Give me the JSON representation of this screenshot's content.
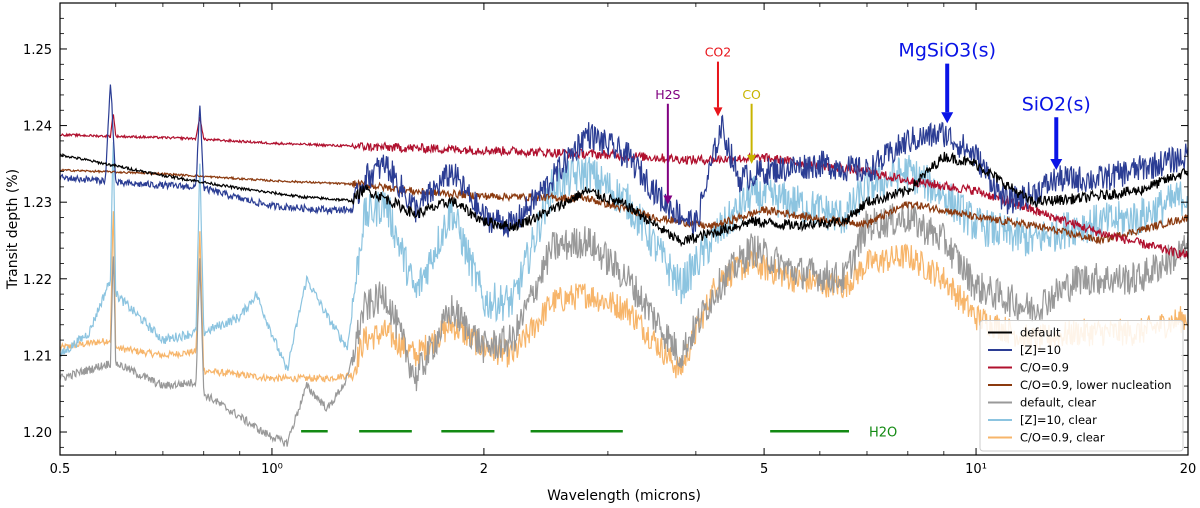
{
  "chart_data": {
    "type": "line",
    "title": "",
    "xlabel": "Wavelength (microns)",
    "ylabel": "Transit depth (%)",
    "xscale": "log",
    "xlim": [
      0.5,
      20
    ],
    "ylim": [
      1.197,
      1.256
    ],
    "xticks": [
      {
        "value": 0.5,
        "label": "0.5"
      },
      {
        "value": 1,
        "label": "10⁰"
      },
      {
        "value": 2,
        "label": "2"
      },
      {
        "value": 5,
        "label": "5"
      },
      {
        "value": 10,
        "label": "10¹"
      },
      {
        "value": 20,
        "label": "20"
      }
    ],
    "yticks": [
      {
        "value": 1.2,
        "label": "1.20"
      },
      {
        "value": 1.21,
        "label": "1.21"
      },
      {
        "value": 1.22,
        "label": "1.22"
      },
      {
        "value": 1.23,
        "label": "1.23"
      },
      {
        "value": 1.24,
        "label": "1.24"
      },
      {
        "value": 1.25,
        "label": "1.25"
      }
    ],
    "grid": false,
    "legend_position": "lower-right",
    "series": [
      {
        "name": "default",
        "color": "#000000",
        "noise": 0.0007,
        "points": [
          [
            0.5,
            1.2362
          ],
          [
            0.7,
            1.2335
          ],
          [
            0.9,
            1.2318
          ],
          [
            1.1,
            1.2307
          ],
          [
            1.3,
            1.2302
          ],
          [
            1.35,
            1.2317
          ],
          [
            1.45,
            1.2305
          ],
          [
            1.6,
            1.2284
          ],
          [
            1.8,
            1.2302
          ],
          [
            2.0,
            1.2275
          ],
          [
            2.2,
            1.2268
          ],
          [
            2.5,
            1.229
          ],
          [
            2.8,
            1.2315
          ],
          [
            3.2,
            1.2295
          ],
          [
            3.8,
            1.2248
          ],
          [
            4.3,
            1.2262
          ],
          [
            4.8,
            1.2275
          ],
          [
            5.5,
            1.227
          ],
          [
            6.5,
            1.2275
          ],
          [
            7.0,
            1.23
          ],
          [
            8.0,
            1.2315
          ],
          [
            9.0,
            1.236
          ],
          [
            10,
            1.235
          ],
          [
            12,
            1.23
          ],
          [
            14,
            1.2305
          ],
          [
            17,
            1.2315
          ],
          [
            20,
            1.234
          ]
        ]
      },
      {
        "name": "[Z]=10",
        "color": "#2b3d94",
        "noise": 0.0018,
        "points": [
          [
            0.5,
            1.2332
          ],
          [
            0.58,
            1.2328
          ],
          [
            0.59,
            1.246
          ],
          [
            0.6,
            1.2325
          ],
          [
            0.78,
            1.232
          ],
          [
            0.79,
            1.243
          ],
          [
            0.8,
            1.2318
          ],
          [
            0.9,
            1.2305
          ],
          [
            1.0,
            1.2295
          ],
          [
            1.2,
            1.229
          ],
          [
            1.3,
            1.229
          ],
          [
            1.35,
            1.233
          ],
          [
            1.45,
            1.235
          ],
          [
            1.6,
            1.229
          ],
          [
            1.8,
            1.234
          ],
          [
            2.0,
            1.228
          ],
          [
            2.2,
            1.227
          ],
          [
            2.5,
            1.233
          ],
          [
            2.8,
            1.239
          ],
          [
            3.2,
            1.236
          ],
          [
            3.6,
            1.23
          ],
          [
            4.0,
            1.227
          ],
          [
            4.35,
            1.24
          ],
          [
            4.6,
            1.233
          ],
          [
            5.0,
            1.234
          ],
          [
            6.0,
            1.235
          ],
          [
            7.0,
            1.234
          ],
          [
            8.0,
            1.238
          ],
          [
            9.0,
            1.239
          ],
          [
            10,
            1.236
          ],
          [
            11,
            1.23
          ],
          [
            12,
            1.231
          ],
          [
            13,
            1.233
          ],
          [
            15,
            1.233
          ],
          [
            20,
            1.236
          ]
        ]
      },
      {
        "name": "C/O=0.9",
        "color": "#b0102e",
        "noise": 0.0006,
        "points": [
          [
            0.5,
            1.2388
          ],
          [
            0.59,
            1.2386
          ],
          [
            0.595,
            1.2418
          ],
          [
            0.6,
            1.2386
          ],
          [
            0.78,
            1.2383
          ],
          [
            0.79,
            1.2412
          ],
          [
            0.8,
            1.2382
          ],
          [
            1.0,
            1.2377
          ],
          [
            1.4,
            1.2372
          ],
          [
            2.0,
            1.2368
          ],
          [
            3.0,
            1.2362
          ],
          [
            4.0,
            1.2355
          ],
          [
            5.0,
            1.2358
          ],
          [
            6.0,
            1.2348
          ],
          [
            7.0,
            1.234
          ],
          [
            8.0,
            1.2328
          ],
          [
            10,
            1.2315
          ],
          [
            12,
            1.229
          ],
          [
            15,
            1.226
          ],
          [
            20,
            1.223
          ]
        ]
      },
      {
        "name": "C/O=0.9, lower nucleation",
        "color": "#8b3a0f",
        "noise": 0.0005,
        "points": [
          [
            0.5,
            1.2342
          ],
          [
            0.7,
            1.2337
          ],
          [
            1.0,
            1.2328
          ],
          [
            1.35,
            1.2323
          ],
          [
            1.6,
            1.2314
          ],
          [
            2.0,
            1.2308
          ],
          [
            2.8,
            1.2305
          ],
          [
            3.5,
            1.228
          ],
          [
            4.2,
            1.2268
          ],
          [
            5.0,
            1.229
          ],
          [
            6.0,
            1.2278
          ],
          [
            7.0,
            1.2272
          ],
          [
            8.0,
            1.2298
          ],
          [
            9.0,
            1.229
          ],
          [
            10,
            1.228
          ],
          [
            12,
            1.227
          ],
          [
            15,
            1.225
          ],
          [
            20,
            1.228
          ]
        ]
      },
      {
        "name": "default, clear",
        "color": "#999999",
        "noise": 0.0022,
        "points": [
          [
            0.5,
            1.207
          ],
          [
            0.59,
            1.209
          ],
          [
            0.595,
            1.2245
          ],
          [
            0.6,
            1.209
          ],
          [
            0.7,
            1.206
          ],
          [
            0.78,
            1.2065
          ],
          [
            0.79,
            1.223
          ],
          [
            0.8,
            1.205
          ],
          [
            0.9,
            1.202
          ],
          [
            0.97,
            1.2
          ],
          [
            1.05,
            1.1985
          ],
          [
            1.12,
            1.206
          ],
          [
            1.2,
            1.203
          ],
          [
            1.28,
            1.207
          ],
          [
            1.35,
            1.216
          ],
          [
            1.45,
            1.218
          ],
          [
            1.6,
            1.207
          ],
          [
            1.8,
            1.216
          ],
          [
            2.0,
            1.211
          ],
          [
            2.2,
            1.212
          ],
          [
            2.5,
            1.224
          ],
          [
            2.8,
            1.225
          ],
          [
            3.2,
            1.22
          ],
          [
            3.8,
            1.21
          ],
          [
            4.3,
            1.219
          ],
          [
            4.8,
            1.224
          ],
          [
            5.5,
            1.221
          ],
          [
            6.5,
            1.22
          ],
          [
            7.0,
            1.227
          ],
          [
            8.0,
            1.228
          ],
          [
            9.0,
            1.225
          ],
          [
            10,
            1.219
          ],
          [
            12,
            1.216
          ],
          [
            14,
            1.22
          ],
          [
            17,
            1.22
          ],
          [
            20,
            1.224
          ]
        ]
      },
      {
        "name": "[Z]=10, clear",
        "color": "#8cc4e0",
        "noise": 0.0025,
        "points": [
          [
            0.5,
            1.21
          ],
          [
            0.55,
            1.213
          ],
          [
            0.59,
            1.22
          ],
          [
            0.595,
            1.24
          ],
          [
            0.6,
            1.218
          ],
          [
            0.7,
            1.212
          ],
          [
            0.78,
            1.213
          ],
          [
            0.79,
            1.235
          ],
          [
            0.8,
            1.213
          ],
          [
            0.9,
            1.215
          ],
          [
            0.95,
            1.218
          ],
          [
            1.05,
            1.208
          ],
          [
            1.12,
            1.22
          ],
          [
            1.2,
            1.215
          ],
          [
            1.28,
            1.211
          ],
          [
            1.35,
            1.228
          ],
          [
            1.45,
            1.23
          ],
          [
            1.6,
            1.218
          ],
          [
            1.8,
            1.229
          ],
          [
            2.0,
            1.217
          ],
          [
            2.2,
            1.217
          ],
          [
            2.5,
            1.232
          ],
          [
            2.8,
            1.234
          ],
          [
            3.2,
            1.23
          ],
          [
            3.8,
            1.219
          ],
          [
            4.3,
            1.226
          ],
          [
            4.8,
            1.231
          ],
          [
            5.5,
            1.23
          ],
          [
            6.5,
            1.228
          ],
          [
            7.0,
            1.232
          ],
          [
            8.0,
            1.234
          ],
          [
            9.0,
            1.231
          ],
          [
            10,
            1.227
          ],
          [
            12,
            1.225
          ],
          [
            14,
            1.227
          ],
          [
            17,
            1.228
          ],
          [
            20,
            1.231
          ]
        ]
      },
      {
        "name": "C/O=0.9, clear",
        "color": "#f7b56a",
        "noise": 0.0018,
        "points": [
          [
            0.5,
            1.211
          ],
          [
            0.59,
            1.212
          ],
          [
            0.595,
            1.23
          ],
          [
            0.6,
            1.211
          ],
          [
            0.7,
            1.21
          ],
          [
            0.78,
            1.2105
          ],
          [
            0.79,
            1.226
          ],
          [
            0.8,
            1.208
          ],
          [
            1.0,
            1.207
          ],
          [
            1.2,
            1.207
          ],
          [
            1.3,
            1.2075
          ],
          [
            1.35,
            1.212
          ],
          [
            1.45,
            1.213
          ],
          [
            1.6,
            1.21
          ],
          [
            1.8,
            1.214
          ],
          [
            2.0,
            1.211
          ],
          [
            2.2,
            1.21
          ],
          [
            2.5,
            1.217
          ],
          [
            2.8,
            1.218
          ],
          [
            3.2,
            1.216
          ],
          [
            3.8,
            1.208
          ],
          [
            4.3,
            1.22
          ],
          [
            4.8,
            1.222
          ],
          [
            5.5,
            1.22
          ],
          [
            6.5,
            1.219
          ],
          [
            7.0,
            1.222
          ],
          [
            8.0,
            1.223
          ],
          [
            9.0,
            1.22
          ],
          [
            10,
            1.215
          ],
          [
            12,
            1.212
          ],
          [
            14,
            1.213
          ],
          [
            17,
            1.213
          ],
          [
            20,
            1.215
          ]
        ]
      }
    ],
    "bands": [
      {
        "label": "",
        "x0": 1.1,
        "x1": 1.2,
        "y": 1.2001,
        "color": "#138a13"
      },
      {
        "label": "",
        "x0": 1.33,
        "x1": 1.58,
        "y": 1.2001,
        "color": "#138a13"
      },
      {
        "label": "",
        "x0": 1.74,
        "x1": 2.07,
        "y": 1.2001,
        "color": "#138a13"
      },
      {
        "label": "",
        "x0": 2.33,
        "x1": 3.15,
        "y": 1.2001,
        "color": "#138a13"
      },
      {
        "label": "H2O",
        "x0": 5.1,
        "x1": 6.6,
        "y": 1.2001,
        "color": "#138a13"
      }
    ],
    "annotations": [
      {
        "label": "CO2",
        "color": "#e8141a",
        "x": 4.3,
        "y_text": 1.249,
        "y_tip": 1.2412,
        "size": "small"
      },
      {
        "label": "H2S",
        "color": "#800080",
        "x": 3.65,
        "y_text": 1.2435,
        "y_tip": 1.2297,
        "size": "small"
      },
      {
        "label": "CO",
        "color": "#c8b400",
        "x": 4.8,
        "y_text": 1.2435,
        "y_tip": 1.235,
        "size": "small"
      },
      {
        "label": "MgSiO3(s)",
        "color": "#0a14e6",
        "x": 9.1,
        "y_text": 1.249,
        "y_tip": 1.2403,
        "size": "large"
      },
      {
        "label": "SiO2(s)",
        "color": "#0a14e6",
        "x": 13.0,
        "y_text": 1.242,
        "y_tip": 1.2342,
        "size": "large"
      }
    ]
  }
}
